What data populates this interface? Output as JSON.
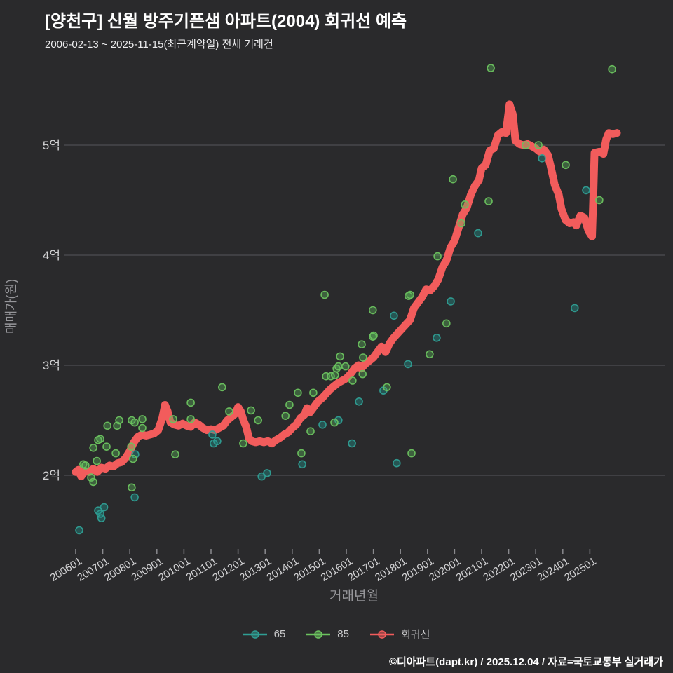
{
  "header": {
    "title": "[양천구] 신월 방주기픈샘 아파트(2004) 회귀선 예측",
    "subtitle": "2006-02-13 ~ 2025-11-15(최근계약일) 전체 거래건"
  },
  "footer": {
    "credit": "©디아파트(dapt.kr) / 2025.12.04 / 자료=국토교통부 실거래가"
  },
  "colors": {
    "background": "#2a2a2c",
    "gridline": "#56565b",
    "tick": "#8a8a8e",
    "tick_label": "#d2d2d4",
    "axis_title": "#96969a",
    "series_65": "#2f9e94",
    "series_85": "#6cc25f",
    "regression": "#f25c5c"
  },
  "chart_data": {
    "type": "scatter",
    "title": "[양천구] 신월 방주기픈샘 아파트(2004) 회귀선 예측",
    "xlabel": "거래년월",
    "ylabel": "매매가(원)",
    "x_ticks": [
      "200601",
      "200701",
      "200801",
      "200901",
      "201001",
      "201101",
      "201201",
      "201301",
      "201401",
      "201501",
      "201601",
      "201701",
      "201801",
      "201901",
      "202001",
      "202101",
      "202201",
      "202301",
      "202401",
      "202501"
    ],
    "y_ticks": [
      "2억",
      "3억",
      "4억",
      "5억"
    ],
    "y_tick_values": [
      2,
      3,
      4,
      5
    ],
    "x_range": [
      2005.9,
      2026.3
    ],
    "y_range": [
      1.3,
      5.75
    ],
    "grid": "horizontal-only",
    "legend_position": "bottom-center",
    "legend": [
      {
        "label": "65",
        "color": "#2f9e94"
      },
      {
        "label": "85",
        "color": "#6cc25f"
      },
      {
        "label": "회귀선",
        "color": "#f25c5c"
      }
    ],
    "series": [
      {
        "name": "65",
        "type": "scatter",
        "fill": "#1f9c94",
        "stroke": "#2f9e94",
        "points": [
          [
            2006.13,
            1.5
          ],
          [
            2006.83,
            1.68
          ],
          [
            2006.91,
            1.65
          ],
          [
            2007.05,
            1.71
          ],
          [
            2006.95,
            1.61
          ],
          [
            2008.18,
            1.8
          ],
          [
            2008.2,
            2.19
          ],
          [
            2011.05,
            2.37
          ],
          [
            2011.1,
            2.29
          ],
          [
            2011.23,
            2.31
          ],
          [
            2012.87,
            1.99
          ],
          [
            2013.07,
            2.02
          ],
          [
            2014.37,
            2.1
          ],
          [
            2015.12,
            2.46
          ],
          [
            2015.71,
            2.5
          ],
          [
            2016.21,
            2.29
          ],
          [
            2016.47,
            2.67
          ],
          [
            2017.37,
            2.77
          ],
          [
            2017.86,
            2.11
          ],
          [
            2017.76,
            3.45
          ],
          [
            2018.28,
            3.01
          ],
          [
            2019.34,
            3.25
          ],
          [
            2019.86,
            3.58
          ],
          [
            2020.87,
            4.2
          ],
          [
            2023.23,
            4.88
          ],
          [
            2024.44,
            3.52
          ],
          [
            2024.86,
            4.59
          ]
        ]
      },
      {
        "name": "85",
        "type": "scatter",
        "fill": "#5cb85c",
        "stroke": "#6cc25f",
        "points": [
          [
            2006.28,
            2.1
          ],
          [
            2006.36,
            2.09
          ],
          [
            2006.57,
            1.98
          ],
          [
            2006.65,
            1.94
          ],
          [
            2006.65,
            2.25
          ],
          [
            2006.78,
            2.13
          ],
          [
            2006.83,
            2.32
          ],
          [
            2006.91,
            2.33
          ],
          [
            2007.14,
            2.26
          ],
          [
            2007.17,
            2.45
          ],
          [
            2007.48,
            2.2
          ],
          [
            2007.53,
            2.45
          ],
          [
            2007.61,
            2.5
          ],
          [
            2008.05,
            2.26
          ],
          [
            2008.07,
            1.89
          ],
          [
            2008.07,
            2.5
          ],
          [
            2008.12,
            2.15
          ],
          [
            2008.18,
            2.48
          ],
          [
            2008.46,
            2.51
          ],
          [
            2008.46,
            2.43
          ],
          [
            2009.6,
            2.51
          ],
          [
            2009.68,
            2.19
          ],
          [
            2010.25,
            2.51
          ],
          [
            2010.25,
            2.66
          ],
          [
            2011.41,
            2.8
          ],
          [
            2011.67,
            2.58
          ],
          [
            2012.19,
            2.29
          ],
          [
            2012.48,
            2.59
          ],
          [
            2012.74,
            2.5
          ],
          [
            2013.75,
            2.54
          ],
          [
            2013.9,
            2.64
          ],
          [
            2014.21,
            2.75
          ],
          [
            2014.34,
            2.2
          ],
          [
            2014.68,
            2.4
          ],
          [
            2014.78,
            2.75
          ],
          [
            2015.2,
            3.64
          ],
          [
            2015.25,
            2.9
          ],
          [
            2015.43,
            2.9
          ],
          [
            2015.56,
            2.48
          ],
          [
            2015.58,
            2.91
          ],
          [
            2015.64,
            2.97
          ],
          [
            2015.71,
            2.99
          ],
          [
            2015.77,
            3.08
          ],
          [
            2015.97,
            2.99
          ],
          [
            2016.23,
            2.86
          ],
          [
            2016.57,
            3.19
          ],
          [
            2016.6,
            2.92
          ],
          [
            2016.62,
            3.07
          ],
          [
            2016.98,
            3.26
          ],
          [
            2017.01,
            3.27
          ],
          [
            2016.98,
            3.5
          ],
          [
            2017.5,
            2.8
          ],
          [
            2018.3,
            3.63
          ],
          [
            2018.36,
            3.64
          ],
          [
            2018.41,
            2.2
          ],
          [
            2019.08,
            3.1
          ],
          [
            2019.37,
            3.99
          ],
          [
            2019.7,
            3.38
          ],
          [
            2019.94,
            4.69
          ],
          [
            2020.25,
            4.29
          ],
          [
            2020.38,
            4.46
          ],
          [
            2021.26,
            4.49
          ],
          [
            2021.34,
            5.7
          ],
          [
            2022.63,
            5.0
          ],
          [
            2023.1,
            5.0
          ],
          [
            2024.11,
            4.82
          ],
          [
            2025.35,
            4.5
          ],
          [
            2025.82,
            5.69
          ]
        ]
      },
      {
        "name": "회귀선",
        "type": "line",
        "color": "#f25c5c",
        "points": [
          [
            2006.0,
            2.03
          ],
          [
            2006.1,
            2.05
          ],
          [
            2006.2,
            1.99
          ],
          [
            2006.35,
            2.04
          ],
          [
            2006.5,
            2.03
          ],
          [
            2006.65,
            2.06
          ],
          [
            2006.8,
            2.03
          ],
          [
            2006.95,
            2.07
          ],
          [
            2007.1,
            2.06
          ],
          [
            2007.25,
            2.09
          ],
          [
            2007.4,
            2.08
          ],
          [
            2007.55,
            2.11
          ],
          [
            2007.7,
            2.12
          ],
          [
            2007.85,
            2.16
          ],
          [
            2008.0,
            2.22
          ],
          [
            2008.15,
            2.3
          ],
          [
            2008.3,
            2.35
          ],
          [
            2008.45,
            2.37
          ],
          [
            2008.6,
            2.36
          ],
          [
            2008.75,
            2.37
          ],
          [
            2008.9,
            2.38
          ],
          [
            2009.05,
            2.41
          ],
          [
            2009.2,
            2.52
          ],
          [
            2009.3,
            2.64
          ],
          [
            2009.4,
            2.58
          ],
          [
            2009.5,
            2.48
          ],
          [
            2009.65,
            2.46
          ],
          [
            2009.8,
            2.45
          ],
          [
            2009.95,
            2.47
          ],
          [
            2010.1,
            2.45
          ],
          [
            2010.25,
            2.44
          ],
          [
            2010.4,
            2.48
          ],
          [
            2010.55,
            2.46
          ],
          [
            2010.7,
            2.43
          ],
          [
            2010.85,
            2.41
          ],
          [
            2011.0,
            2.42
          ],
          [
            2011.15,
            2.41
          ],
          [
            2011.3,
            2.43
          ],
          [
            2011.45,
            2.45
          ],
          [
            2011.6,
            2.5
          ],
          [
            2011.75,
            2.53
          ],
          [
            2011.9,
            2.56
          ],
          [
            2012.0,
            2.62
          ],
          [
            2012.1,
            2.58
          ],
          [
            2012.2,
            2.5
          ],
          [
            2012.3,
            2.44
          ],
          [
            2012.4,
            2.34
          ],
          [
            2012.5,
            2.31
          ],
          [
            2012.65,
            2.3
          ],
          [
            2012.8,
            2.31
          ],
          [
            2012.95,
            2.3
          ],
          [
            2013.1,
            2.31
          ],
          [
            2013.25,
            2.29
          ],
          [
            2013.4,
            2.32
          ],
          [
            2013.55,
            2.34
          ],
          [
            2013.7,
            2.37
          ],
          [
            2013.85,
            2.39
          ],
          [
            2014.0,
            2.43
          ],
          [
            2014.15,
            2.46
          ],
          [
            2014.3,
            2.52
          ],
          [
            2014.45,
            2.55
          ],
          [
            2014.55,
            2.61
          ],
          [
            2014.65,
            2.57
          ],
          [
            2014.8,
            2.62
          ],
          [
            2014.95,
            2.67
          ],
          [
            2015.1,
            2.7
          ],
          [
            2015.25,
            2.74
          ],
          [
            2015.4,
            2.78
          ],
          [
            2015.55,
            2.81
          ],
          [
            2015.7,
            2.84
          ],
          [
            2015.85,
            2.86
          ],
          [
            2016.0,
            2.88
          ],
          [
            2016.15,
            2.92
          ],
          [
            2016.3,
            2.97
          ],
          [
            2016.45,
            3.0
          ],
          [
            2016.55,
            2.97
          ],
          [
            2016.7,
            3.01
          ],
          [
            2016.85,
            3.04
          ],
          [
            2017.0,
            3.07
          ],
          [
            2017.15,
            3.12
          ],
          [
            2017.3,
            3.17
          ],
          [
            2017.45,
            3.12
          ],
          [
            2017.6,
            3.2
          ],
          [
            2017.75,
            3.25
          ],
          [
            2017.9,
            3.29
          ],
          [
            2018.05,
            3.33
          ],
          [
            2018.2,
            3.37
          ],
          [
            2018.35,
            3.41
          ],
          [
            2018.5,
            3.52
          ],
          [
            2018.65,
            3.57
          ],
          [
            2018.8,
            3.62
          ],
          [
            2018.95,
            3.69
          ],
          [
            2019.1,
            3.68
          ],
          [
            2019.25,
            3.72
          ],
          [
            2019.4,
            3.78
          ],
          [
            2019.55,
            3.89
          ],
          [
            2019.7,
            3.95
          ],
          [
            2019.85,
            4.07
          ],
          [
            2020.0,
            4.13
          ],
          [
            2020.15,
            4.25
          ],
          [
            2020.3,
            4.37
          ],
          [
            2020.45,
            4.43
          ],
          [
            2020.6,
            4.55
          ],
          [
            2020.75,
            4.63
          ],
          [
            2020.9,
            4.68
          ],
          [
            2021.0,
            4.79
          ],
          [
            2021.15,
            4.82
          ],
          [
            2021.3,
            4.95
          ],
          [
            2021.45,
            4.97
          ],
          [
            2021.6,
            5.09
          ],
          [
            2021.75,
            5.12
          ],
          [
            2021.9,
            5.11
          ],
          [
            2022.03,
            5.37
          ],
          [
            2022.15,
            5.28
          ],
          [
            2022.25,
            5.04
          ],
          [
            2022.4,
            5.01
          ],
          [
            2022.55,
            5.0
          ],
          [
            2022.7,
            5.01
          ],
          [
            2022.85,
            4.99
          ],
          [
            2023.0,
            4.97
          ],
          [
            2023.15,
            4.94
          ],
          [
            2023.3,
            4.96
          ],
          [
            2023.45,
            4.91
          ],
          [
            2023.55,
            4.81
          ],
          [
            2023.7,
            4.64
          ],
          [
            2023.85,
            4.55
          ],
          [
            2023.95,
            4.42
          ],
          [
            2024.1,
            4.32
          ],
          [
            2024.25,
            4.29
          ],
          [
            2024.4,
            4.3
          ],
          [
            2024.5,
            4.27
          ],
          [
            2024.65,
            4.36
          ],
          [
            2024.8,
            4.34
          ],
          [
            2024.95,
            4.22
          ],
          [
            2025.08,
            4.17
          ],
          [
            2025.13,
            4.55
          ],
          [
            2025.17,
            4.93
          ],
          [
            2025.35,
            4.94
          ],
          [
            2025.5,
            4.92
          ],
          [
            2025.6,
            5.05
          ],
          [
            2025.7,
            5.11
          ],
          [
            2025.85,
            5.1
          ],
          [
            2026.0,
            5.11
          ]
        ]
      }
    ]
  }
}
